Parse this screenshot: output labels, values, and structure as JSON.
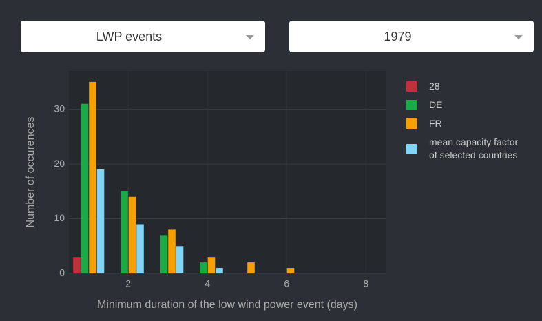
{
  "dropdowns": [
    {
      "value": "LWP events"
    },
    {
      "value": "1979"
    }
  ],
  "chart_data": {
    "type": "bar",
    "x": [
      1,
      2,
      3,
      4,
      5,
      6,
      7,
      8
    ],
    "series": [
      {
        "name": "28",
        "color": "#c0313c",
        "values": [
          3,
          0,
          0,
          0,
          0,
          0,
          0,
          0
        ]
      },
      {
        "name": "DE",
        "color": "#1aab47",
        "values": [
          31,
          15,
          7,
          2,
          0,
          0,
          0,
          0
        ]
      },
      {
        "name": "FR",
        "color": "#f7a100",
        "values": [
          35,
          14,
          8,
          3,
          2,
          1,
          0,
          0
        ]
      },
      {
        "name": "mean capacity factor of selected countries",
        "color": "#82d5f5",
        "values": [
          19,
          9,
          5,
          1,
          0,
          0,
          0,
          0
        ]
      }
    ],
    "xlabel": "Minimum duration of the low wind power event (days)",
    "ylabel": "Number of occurences",
    "xlim": [
      0.5,
      8.5
    ],
    "xticks": [
      2,
      4,
      6,
      8
    ],
    "ylim": [
      0,
      37
    ],
    "yticks": [
      0,
      10,
      20,
      30
    ],
    "grid": true,
    "legend": "right"
  }
}
